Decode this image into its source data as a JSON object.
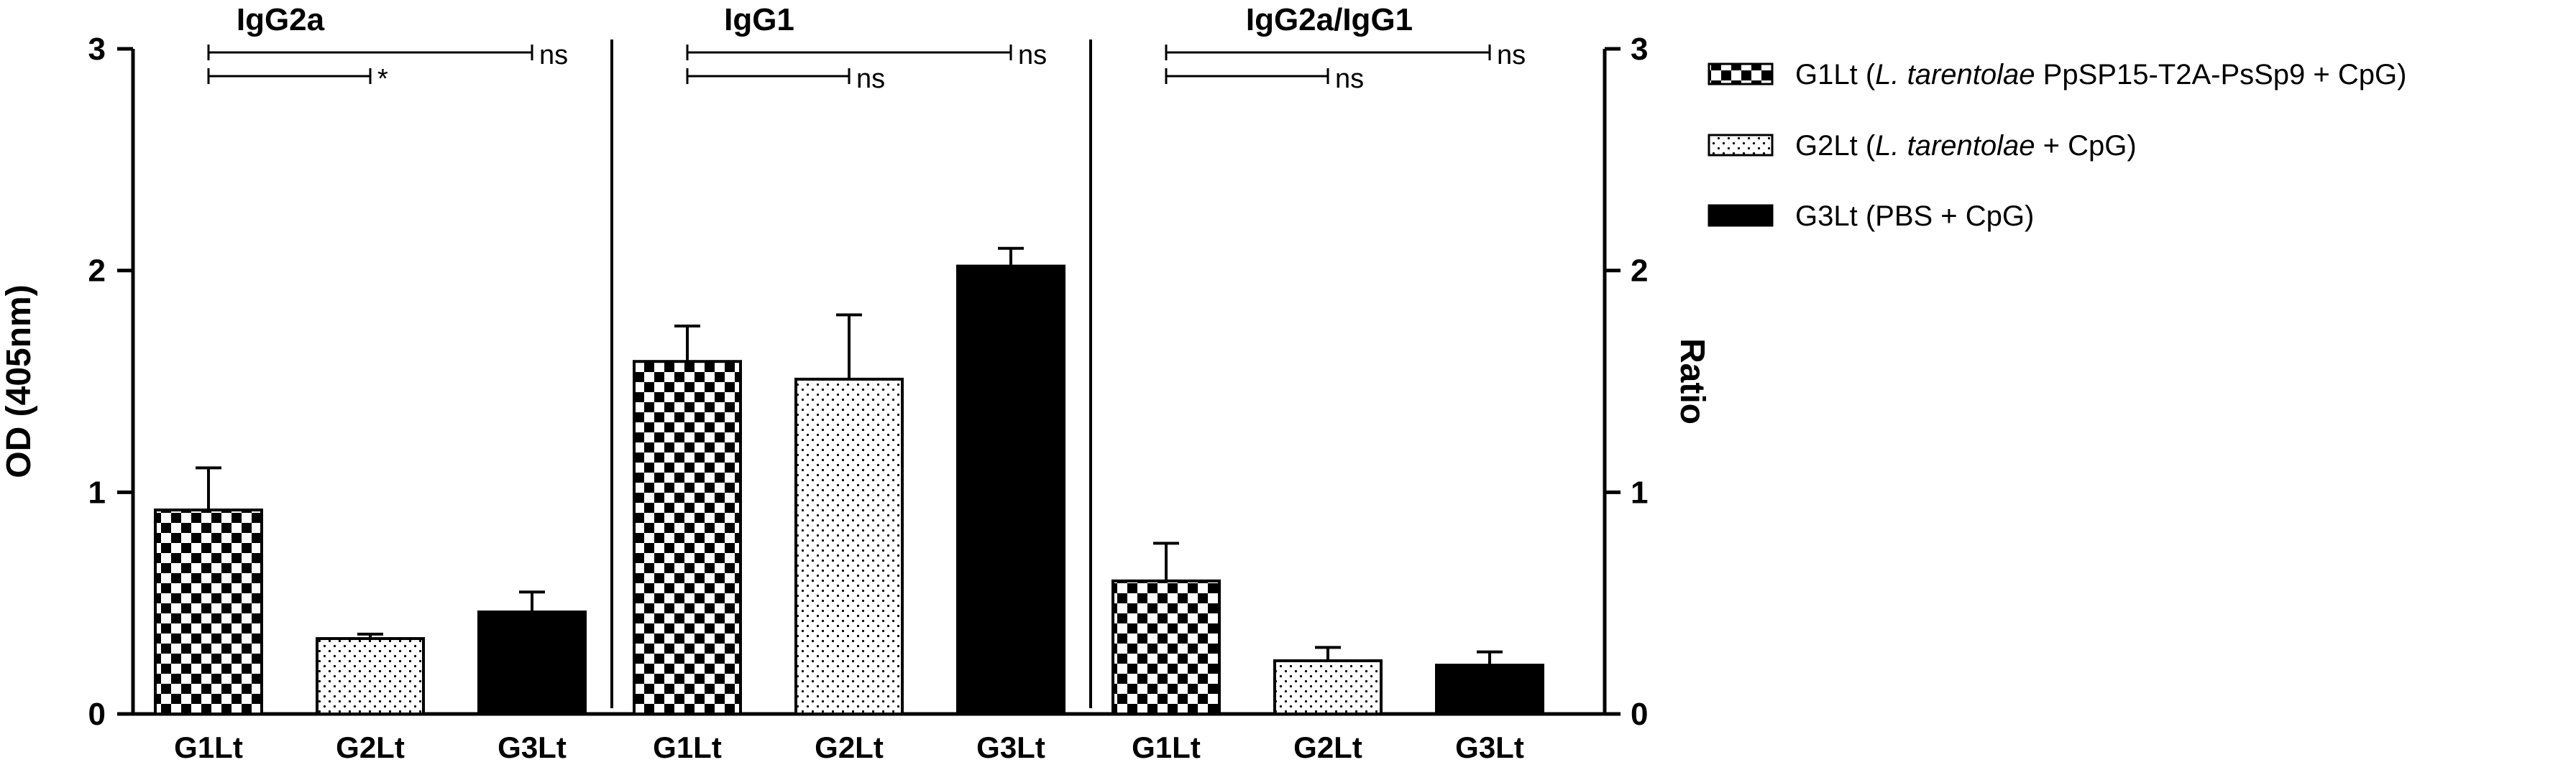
{
  "chart_data": {
    "type": "bar",
    "ylabel_left": "OD (405nm)",
    "ylabel_right": "Ratio",
    "ylim": [
      0,
      3
    ],
    "yticks": [
      0,
      1,
      2,
      3
    ],
    "categories": [
      "G1Lt",
      "G2Lt",
      "G3Lt"
    ],
    "panels": [
      {
        "title": "IgG2a",
        "values": [
          0.92,
          0.34,
          0.46
        ],
        "errors": [
          0.19,
          0.02,
          0.09
        ],
        "comparisons": [
          {
            "from": "G1Lt",
            "to": "G3Lt",
            "label": "ns"
          },
          {
            "from": "G1Lt",
            "to": "G2Lt",
            "label": "*"
          }
        ]
      },
      {
        "title": "IgG1",
        "values": [
          1.59,
          1.51,
          2.02
        ],
        "errors": [
          0.16,
          0.29,
          0.08
        ],
        "comparisons": [
          {
            "from": "G1Lt",
            "to": "G3Lt",
            "label": "ns"
          },
          {
            "from": "G1Lt",
            "to": "G2Lt",
            "label": "ns"
          }
        ]
      },
      {
        "title": "IgG2a/IgG1",
        "values": [
          0.6,
          0.24,
          0.22
        ],
        "errors": [
          0.17,
          0.06,
          0.06
        ],
        "comparisons": [
          {
            "from": "G1Lt",
            "to": "G3Lt",
            "label": "ns"
          },
          {
            "from": "G1Lt",
            "to": "G2Lt",
            "label": "ns"
          }
        ]
      }
    ],
    "legend": {
      "placement": "right",
      "entries": [
        {
          "key": "G1Lt",
          "pattern": "checkerboard",
          "parts": [
            {
              "text": "G1Lt (",
              "italic": false
            },
            {
              "text": "L. tarentolae",
              "italic": true
            },
            {
              "text": " PpSP15-T2A-PsSp9 + CpG)",
              "italic": false
            }
          ]
        },
        {
          "key": "G2Lt",
          "pattern": "dots",
          "parts": [
            {
              "text": "G2Lt (",
              "italic": false
            },
            {
              "text": "L. tarentolae",
              "italic": true
            },
            {
              "text": " + CpG)",
              "italic": false
            }
          ]
        },
        {
          "key": "G3Lt",
          "pattern": "solid",
          "parts": [
            {
              "text": "G3Lt (PBS + CpG)",
              "italic": false
            }
          ]
        }
      ]
    },
    "colors": {
      "bar_stroke": "#000000",
      "solid_fill": "#000000",
      "dot_fill": "#000000",
      "background": "#ffffff"
    }
  }
}
